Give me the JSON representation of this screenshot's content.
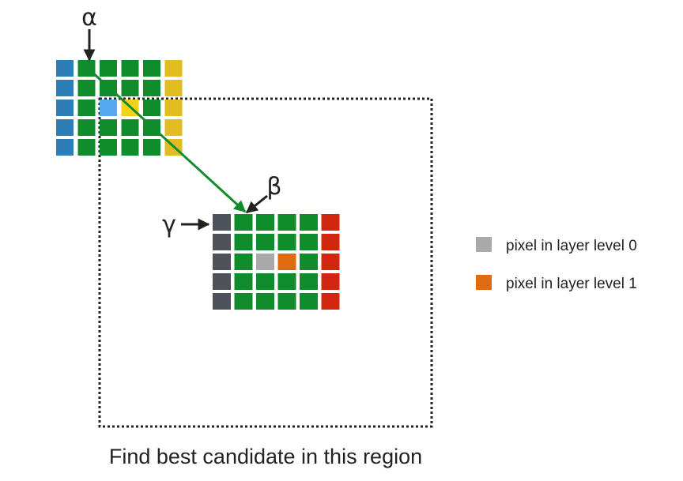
{
  "labels": {
    "alpha": "α",
    "beta": "β",
    "gamma": "γ"
  },
  "legend": {
    "items": [
      {
        "label": "pixel in layer level 0",
        "color": "#a9a9a9"
      },
      {
        "label": "pixel in layer level 1",
        "color": "#e06a12"
      }
    ]
  },
  "caption": "Find best candidate in this region",
  "colors": {
    "green": "#118c2c",
    "blue": "#2f7db5",
    "yellow": "#e1bd21",
    "highlight_blue": "#56a9f0",
    "highlight_yellow": "#f3d317",
    "dark_gray": "#4e535b",
    "red": "#d3260e",
    "gray": "#a9a9a9",
    "orange": "#e06a12",
    "arrow": "#118c2c",
    "border": "#222222"
  },
  "grid_top": {
    "rows": 5,
    "cols": 6,
    "cells": [
      [
        "blue",
        "green",
        "green",
        "green",
        "green",
        "yellow"
      ],
      [
        "blue",
        "green",
        "green",
        "green",
        "green",
        "yellow"
      ],
      [
        "blue",
        "green",
        "highlight_blue",
        "highlight_yellow",
        "green",
        "yellow"
      ],
      [
        "blue",
        "green",
        "green",
        "green",
        "green",
        "yellow"
      ],
      [
        "blue",
        "green",
        "green",
        "green",
        "green",
        "yellow"
      ]
    ]
  },
  "grid_bottom": {
    "rows": 5,
    "cols": 6,
    "cells": [
      [
        "dark_gray",
        "green",
        "green",
        "green",
        "green",
        "red"
      ],
      [
        "dark_gray",
        "green",
        "green",
        "green",
        "green",
        "red"
      ],
      [
        "dark_gray",
        "green",
        "gray",
        "orange",
        "green",
        "red"
      ],
      [
        "dark_gray",
        "green",
        "green",
        "green",
        "green",
        "red"
      ],
      [
        "dark_gray",
        "green",
        "green",
        "green",
        "green",
        "red"
      ]
    ]
  }
}
